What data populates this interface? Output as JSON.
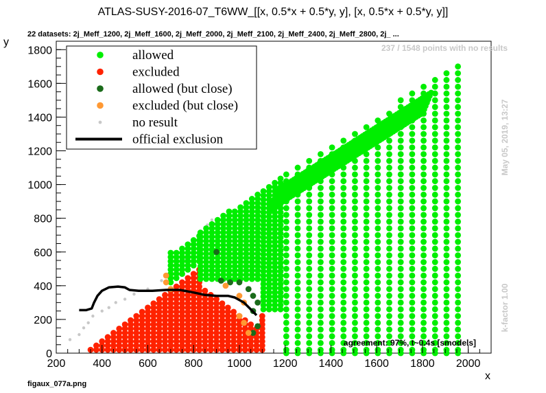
{
  "title": "ATLAS-SUSY-2016-07_T6WW_[[x, 0.5*x + 0.5*y, y], [x, 0.5*x + 0.5*y, y]]",
  "subtitle": "22 datasets: 2j_Meff_1200, 2j_Meff_1600, 2j_Meff_2000, 2j_Meff_2100, 2j_Meff_2400, 2j_Meff_2800, 2j_ ...",
  "no_results_note": "237 / 1548 points with no results",
  "date_note": "May 05, 2019, 13:27",
  "kfactor_note": "k-factor 1.00",
  "agreement_note": "agreement: 97%, t~0.4s [smodels]",
  "filename": "figaux_077a.png",
  "colors": {
    "allowed": "#00ee00",
    "excluded": "#ff2200",
    "allowed_close": "#1a6b1a",
    "excluded_close": "#ff9933",
    "no_result": "#c8c8c8",
    "official": "#000000"
  },
  "legend": [
    {
      "label": "allowed",
      "key": "allowed",
      "kind": "dot"
    },
    {
      "label": "excluded",
      "key": "excluded",
      "kind": "dot"
    },
    {
      "label": "allowed (but close)",
      "key": "allowed_close",
      "kind": "dot"
    },
    {
      "label": "excluded (but close)",
      "key": "excluded_close",
      "kind": "dot"
    },
    {
      "label": "no result",
      "key": "no_result",
      "kind": "smalldot"
    },
    {
      "label": "official exclusion",
      "key": "official",
      "kind": "line"
    }
  ],
  "chart_data": {
    "type": "scatter",
    "xlabel": "x",
    "ylabel": "y",
    "xlim": [
      200,
      2100
    ],
    "ylim": [
      0,
      1850
    ],
    "xticks": [
      200,
      400,
      600,
      800,
      1000,
      1200,
      1400,
      1600,
      1800,
      2000
    ],
    "yticks": [
      0,
      200,
      400,
      600,
      800,
      1000,
      1200,
      1400,
      1600,
      1800
    ],
    "grid": false,
    "legend_position": "top-left",
    "regions": {
      "allowed_extent": {
        "x_min": 830,
        "x_max": 2000,
        "y_max_slope": 0.88
      },
      "excluded_extent": {
        "x_min": 340,
        "x_max": 1100
      }
    },
    "series": [
      {
        "name": "official exclusion",
        "points": [
          [
            300,
            255
          ],
          [
            330,
            255
          ],
          [
            355,
            265
          ],
          [
            365,
            300
          ],
          [
            380,
            340
          ],
          [
            400,
            370
          ],
          [
            430,
            390
          ],
          [
            470,
            395
          ],
          [
            500,
            390
          ],
          [
            520,
            375
          ],
          [
            560,
            370
          ],
          [
            620,
            370
          ],
          [
            680,
            375
          ],
          [
            740,
            375
          ],
          [
            800,
            360
          ],
          [
            850,
            345
          ],
          [
            900,
            340
          ],
          [
            950,
            340
          ],
          [
            980,
            330
          ],
          [
            1020,
            300
          ],
          [
            1050,
            260
          ],
          [
            1075,
            225
          ]
        ]
      },
      {
        "name": "no result",
        "points": [
          [
            260,
            80
          ],
          [
            300,
            110
          ],
          [
            320,
            150
          ],
          [
            340,
            180
          ],
          [
            360,
            220
          ],
          [
            400,
            250
          ],
          [
            430,
            270
          ],
          [
            460,
            300
          ],
          [
            500,
            320
          ],
          [
            540,
            350
          ],
          [
            600,
            380
          ],
          [
            660,
            430
          ],
          [
            690,
            470
          ],
          [
            720,
            500
          ],
          [
            760,
            560
          ],
          [
            800,
            620
          ],
          [
            830,
            700
          ],
          [
            860,
            760
          ],
          [
            880,
            790
          ]
        ]
      },
      {
        "name": "allowed (but close)",
        "points": [
          [
            900,
            600
          ],
          [
            920,
            430
          ],
          [
            960,
            420
          ],
          [
            1000,
            420
          ],
          [
            1040,
            380
          ],
          [
            1060,
            340
          ],
          [
            1080,
            300
          ],
          [
            1060,
            250
          ],
          [
            1080,
            160
          ],
          [
            1060,
            120
          ]
        ]
      },
      {
        "name": "excluded (but close)",
        "points": [
          [
            680,
            460
          ],
          [
            680,
            420
          ],
          [
            700,
            380
          ],
          [
            940,
            400
          ],
          [
            1000,
            340
          ],
          [
            1020,
            300
          ],
          [
            1000,
            220
          ],
          [
            1020,
            180
          ],
          [
            1040,
            120
          ]
        ]
      }
    ]
  }
}
